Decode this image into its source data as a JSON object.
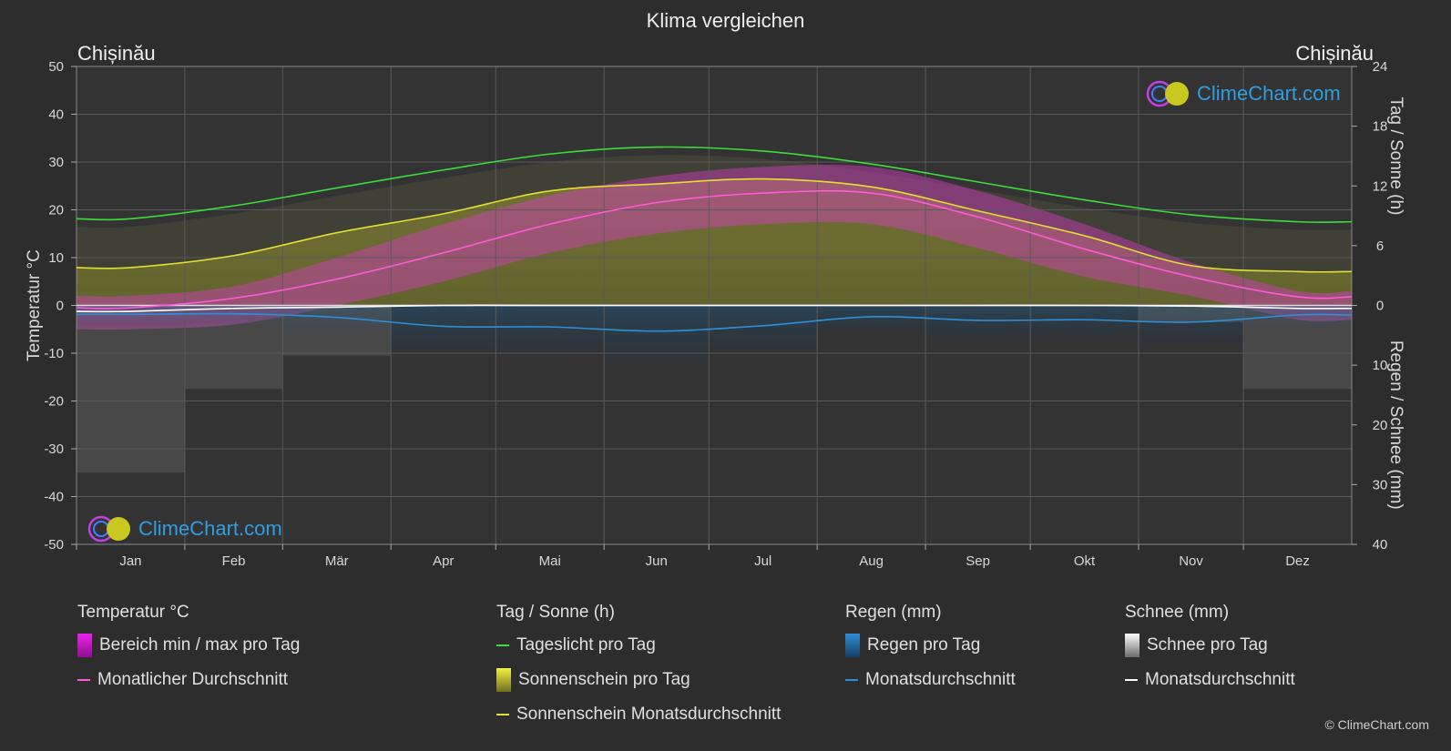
{
  "title": "Klima vergleichen",
  "city_left": "Chișinău",
  "city_right": "Chișinău",
  "logo_text": "ClimeChart.com",
  "copyright": "© ClimeChart.com",
  "chart_data": {
    "type": "line",
    "categories": [
      "Jan",
      "Feb",
      "Mär",
      "Apr",
      "Mai",
      "Jun",
      "Jul",
      "Aug",
      "Sep",
      "Okt",
      "Nov",
      "Dez"
    ],
    "y_left": {
      "label": "Temperatur °C",
      "range": [
        -50,
        50
      ],
      "ticks": [
        50,
        40,
        30,
        20,
        10,
        0,
        -10,
        -20,
        -30,
        -40,
        -50
      ]
    },
    "y_right_top": {
      "label": "Tag / Sonne (h)",
      "range": [
        0,
        24
      ],
      "ticks": [
        24,
        18,
        12,
        6,
        0
      ]
    },
    "y_right_bottom": {
      "label": "Regen / Schnee (mm)",
      "range": [
        0,
        40
      ],
      "ticks": [
        10,
        20,
        30,
        40
      ]
    },
    "series": [
      {
        "name": "Tageslicht pro Tag",
        "unit": "h",
        "color": "#3ddc3d",
        "values": [
          8.7,
          10.0,
          11.8,
          13.6,
          15.2,
          15.9,
          15.5,
          14.2,
          12.4,
          10.6,
          9.1,
          8.4
        ]
      },
      {
        "name": "Sonnenschein Monatsdurchschnitt",
        "unit": "h",
        "color": "#e0e030",
        "values": [
          3.8,
          5.0,
          7.3,
          9.2,
          11.5,
          12.2,
          12.7,
          11.9,
          9.5,
          7.0,
          4.0,
          3.4
        ]
      },
      {
        "name": "Monatlicher Durchschnitt",
        "unit": "°C",
        "color": "#ff5ad9",
        "values": [
          -0.5,
          1.5,
          5.5,
          11.0,
          17.0,
          21.5,
          23.5,
          23.5,
          18.5,
          11.8,
          6.0,
          1.8
        ]
      },
      {
        "name": "Regen Monatsdurchschnitt",
        "unit": "mm",
        "color": "#2f8fd6",
        "values": [
          1.5,
          1.4,
          2.0,
          3.5,
          3.6,
          4.3,
          3.4,
          1.9,
          2.5,
          2.4,
          2.8,
          1.6
        ]
      },
      {
        "name": "Schnee Monatsdurchschnitt",
        "unit": "mm",
        "color": "#ffffff",
        "values": [
          1.0,
          0.5,
          0.3,
          0.0,
          0.0,
          0.0,
          0.0,
          0.0,
          0.0,
          0.0,
          0.1,
          0.5
        ]
      }
    ],
    "temp_range": {
      "name": "Bereich min / max pro Tag",
      "min": [
        -5,
        -4,
        0,
        5,
        11,
        15,
        17,
        17,
        12,
        6,
        2,
        -3
      ],
      "max": [
        2,
        4,
        10,
        17,
        23,
        27,
        29,
        29,
        24,
        17,
        9,
        3
      ]
    },
    "sunshine_daily": {
      "name": "Sonnenschein pro Tag",
      "values": [
        3.8,
        5.0,
        7.3,
        9.2,
        11.5,
        12.2,
        12.7,
        11.9,
        9.5,
        7.0,
        4.0,
        3.4
      ]
    },
    "grid": true
  },
  "legend": {
    "temp": {
      "head": "Temperatur °C",
      "items": [
        "Bereich min / max pro Tag",
        "Monatlicher Durchschnitt"
      ]
    },
    "sun": {
      "head": "Tag / Sonne (h)",
      "items": [
        "Tageslicht pro Tag",
        "Sonnenschein pro Tag",
        "Sonnenschein Monatsdurchschnitt"
      ]
    },
    "rain": {
      "head": "Regen (mm)",
      "items": [
        "Regen pro Tag",
        "Monatsdurchschnitt"
      ]
    },
    "snow": {
      "head": "Schnee (mm)",
      "items": [
        "Schnee pro Tag",
        "Monatsdurchschnitt"
      ]
    }
  },
  "colors": {
    "background": "#2d2d2d",
    "grid": "#5a5a5a",
    "daylight": "#3ddc3d",
    "sunshine": "#e0e030",
    "temp_avg": "#ff5ad9",
    "temp_range": "#d63bc4",
    "rain": "#2f8fd6",
    "snow": "#ffffff"
  }
}
